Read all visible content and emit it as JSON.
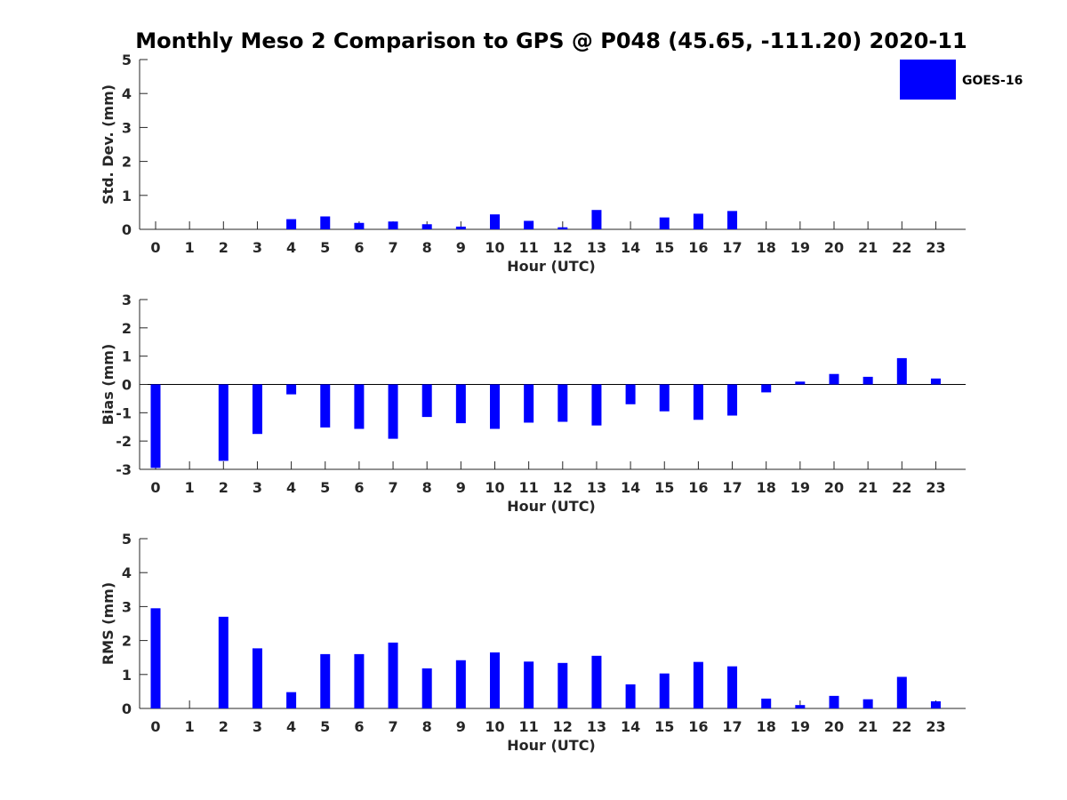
{
  "title": "Monthly Meso 2 Comparison to GPS @ P048 (45.65, -111.20) 2020-11",
  "legend": {
    "label": "GOES-16",
    "color": "#0000ff"
  },
  "chart_data": [
    {
      "type": "bar",
      "xlabel": "Hour (UTC)",
      "ylabel": "Std. Dev. (mm)",
      "ylim": [
        0,
        5
      ],
      "yticks": [
        0,
        1,
        2,
        3,
        4,
        5
      ],
      "categories": [
        "0",
        "1",
        "2",
        "3",
        "4",
        "5",
        "6",
        "7",
        "8",
        "9",
        "10",
        "11",
        "12",
        "13",
        "14",
        "15",
        "16",
        "17",
        "18",
        "19",
        "20",
        "21",
        "22",
        "23"
      ],
      "series": [
        {
          "name": "GOES-16",
          "values": [
            0,
            0,
            0,
            0,
            0.3,
            0.38,
            0.19,
            0.23,
            0.15,
            0.08,
            0.44,
            0.25,
            0.06,
            0.57,
            0,
            0.35,
            0.46,
            0.54,
            0,
            0,
            0,
            0,
            0,
            0
          ]
        }
      ]
    },
    {
      "type": "bar",
      "xlabel": "Hour (UTC)",
      "ylabel": "Bias (mm)",
      "ylim": [
        -3,
        3
      ],
      "yticks": [
        -3,
        -2,
        -1,
        0,
        1,
        2,
        3
      ],
      "categories": [
        "0",
        "1",
        "2",
        "3",
        "4",
        "5",
        "6",
        "7",
        "8",
        "9",
        "10",
        "11",
        "12",
        "13",
        "14",
        "15",
        "16",
        "17",
        "18",
        "19",
        "20",
        "21",
        "22",
        "23"
      ],
      "series": [
        {
          "name": "GOES-16",
          "values": [
            -2.95,
            0,
            -2.7,
            -1.75,
            -0.35,
            -1.52,
            -1.57,
            -1.92,
            -1.15,
            -1.37,
            -1.57,
            -1.35,
            -1.32,
            -1.45,
            -0.7,
            -0.95,
            -1.25,
            -1.1,
            -0.28,
            0.1,
            0.37,
            0.27,
            0.93,
            0.21
          ]
        }
      ]
    },
    {
      "type": "bar",
      "xlabel": "Hour (UTC)",
      "ylabel": "RMS (mm)",
      "ylim": [
        0,
        5
      ],
      "yticks": [
        0,
        1,
        2,
        3,
        4,
        5
      ],
      "categories": [
        "0",
        "1",
        "2",
        "3",
        "4",
        "5",
        "6",
        "7",
        "8",
        "9",
        "10",
        "11",
        "12",
        "13",
        "14",
        "15",
        "16",
        "17",
        "18",
        "19",
        "20",
        "21",
        "22",
        "23"
      ],
      "series": [
        {
          "name": "GOES-16",
          "values": [
            2.95,
            0,
            2.7,
            1.77,
            0.48,
            1.6,
            1.6,
            1.94,
            1.18,
            1.42,
            1.65,
            1.38,
            1.34,
            1.55,
            0.71,
            1.03,
            1.37,
            1.24,
            0.29,
            0.1,
            0.37,
            0.27,
            0.93,
            0.21
          ]
        }
      ]
    }
  ]
}
